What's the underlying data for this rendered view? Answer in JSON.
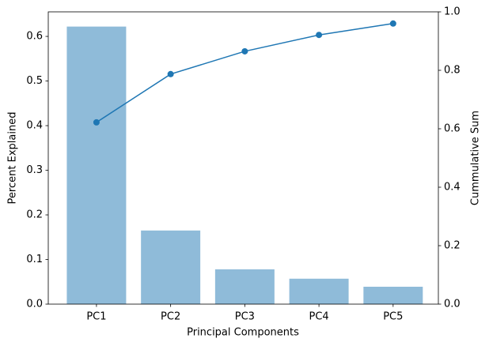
{
  "chart_data": {
    "type": "bar",
    "categories": [
      "PC1",
      "PC2",
      "PC3",
      "PC4",
      "PC5"
    ],
    "xlabel": "Principal Components",
    "ylabel": "Percent Explained",
    "y2label": "Cummulative Sum",
    "series": [
      {
        "type": "bar",
        "color": "#8fbbd9",
        "values": [
          0.622,
          0.165,
          0.078,
          0.057,
          0.039
        ]
      },
      {
        "type": "line",
        "axis": "y2",
        "color": "#1f77b4",
        "values": [
          0.622,
          0.787,
          0.865,
          0.921,
          0.96
        ]
      }
    ],
    "ylim": [
      0,
      0.655
    ],
    "yticks": [
      {
        "value": 0,
        "label": "0.0"
      },
      0.1,
      0.2,
      0.3,
      0.4,
      0.5,
      0.6
    ],
    "y2lim": [
      0,
      1
    ],
    "y2ticks": [
      {
        "value": 0,
        "label": "0.0"
      },
      0.2,
      0.4,
      0.6,
      0.8,
      {
        "value": 1,
        "label": "1.0"
      }
    ]
  }
}
